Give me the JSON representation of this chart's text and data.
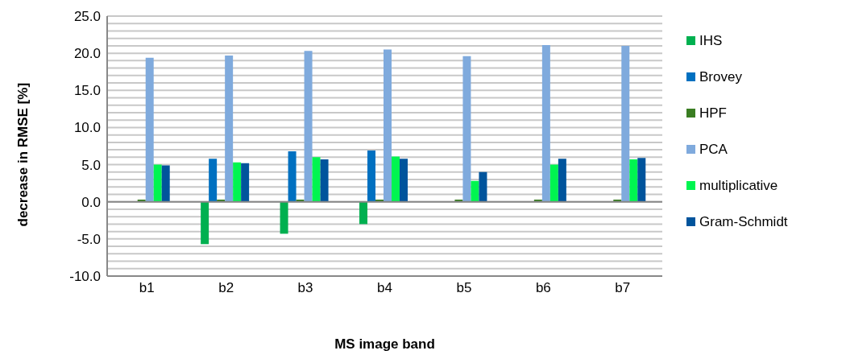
{
  "chart_data": {
    "type": "bar",
    "xlabel": "MS image band",
    "ylabel": "decrease in RMSE [%]",
    "categories": [
      "b1",
      "b2",
      "b3",
      "b4",
      "b5",
      "b6",
      "b7"
    ],
    "series": [
      {
        "name": "IHS",
        "color": "#00b050",
        "values": [
          0,
          -5.7,
          -4.3,
          -3.0,
          0,
          0,
          0
        ]
      },
      {
        "name": "Brovey",
        "color": "#0070c0",
        "values": [
          0,
          5.8,
          6.8,
          6.9,
          0,
          0,
          0
        ]
      },
      {
        "name": "HPF",
        "color": "#3a7d22",
        "values": [
          0.3,
          0.3,
          0.3,
          0.3,
          0.3,
          0.3,
          0.3
        ]
      },
      {
        "name": "PCA",
        "color": "#7faadd",
        "values": [
          19.4,
          19.7,
          20.3,
          20.5,
          19.6,
          21.1,
          21.0
        ]
      },
      {
        "name": "multiplicative",
        "color": "#00f550",
        "values": [
          5.0,
          5.3,
          6.0,
          6.1,
          2.8,
          5.0,
          5.7
        ]
      },
      {
        "name": "Gram-Schmidt",
        "color": "#00549c",
        "values": [
          4.9,
          5.2,
          5.7,
          5.8,
          4.0,
          5.8,
          5.9
        ]
      }
    ],
    "ylim": [
      -10,
      25
    ],
    "yticks": [
      {
        "value": -10,
        "label": "-10.0"
      },
      {
        "value": -9,
        "label": null
      },
      {
        "value": -8,
        "label": null
      },
      {
        "value": -7,
        "label": null
      },
      {
        "value": -6,
        "label": null
      },
      {
        "value": -5,
        "label": "-5.0"
      },
      {
        "value": -4,
        "label": null
      },
      {
        "value": -3,
        "label": null
      },
      {
        "value": -2,
        "label": null
      },
      {
        "value": -1,
        "label": null
      },
      {
        "value": 0,
        "label": "0.0"
      },
      {
        "value": 1,
        "label": null
      },
      {
        "value": 2,
        "label": null
      },
      {
        "value": 3,
        "label": null
      },
      {
        "value": 4,
        "label": null
      },
      {
        "value": 5,
        "label": "5.0"
      },
      {
        "value": 6,
        "label": null
      },
      {
        "value": 7,
        "label": null
      },
      {
        "value": 8,
        "label": null
      },
      {
        "value": 9,
        "label": null
      },
      {
        "value": 10,
        "label": "10.0"
      },
      {
        "value": 11,
        "label": null
      },
      {
        "value": 12,
        "label": null
      },
      {
        "value": 13,
        "label": null
      },
      {
        "value": 14,
        "label": null
      },
      {
        "value": 15,
        "label": "15.0"
      },
      {
        "value": 16,
        "label": null
      },
      {
        "value": 17,
        "label": null
      },
      {
        "value": 18,
        "label": null
      },
      {
        "value": 19,
        "label": null
      },
      {
        "value": 20,
        "label": "20.0"
      },
      {
        "value": 21,
        "label": null
      },
      {
        "value": 22,
        "label": null
      },
      {
        "value": 23,
        "label": null
      },
      {
        "value": 24,
        "label": null
      },
      {
        "value": 25,
        "label": "25.0"
      }
    ],
    "grid": "y",
    "legend": "right"
  }
}
